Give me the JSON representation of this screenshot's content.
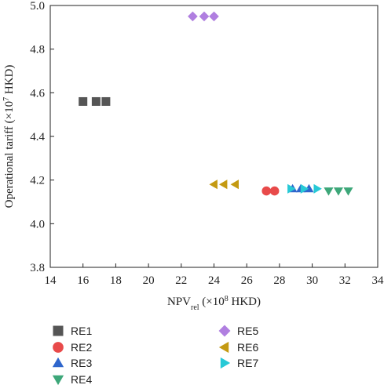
{
  "chart_data": {
    "type": "scatter",
    "xlabel": {
      "main": "NPV",
      "sub": "rel",
      "rest": " (×10",
      "sup": "8",
      "unit": " HKD)"
    },
    "ylabel": {
      "main": "Operational tariff (×10",
      "sup": "7",
      "unit": " HKD)"
    },
    "xlim": [
      14,
      34
    ],
    "ylim": [
      3.8,
      5.0
    ],
    "xticks": [
      14,
      16,
      18,
      20,
      22,
      24,
      26,
      28,
      30,
      32,
      34
    ],
    "yticks": [
      3.8,
      4.0,
      4.2,
      4.4,
      4.6,
      4.8,
      5.0
    ],
    "ytick_labels": [
      "3.8",
      "4.0",
      "4.2",
      "4.4",
      "4.6",
      "4.8",
      "5.0"
    ],
    "grid": false,
    "legend_position": "below-plot",
    "series": [
      {
        "name": "RE1",
        "marker": "square",
        "color": "#555555",
        "x": [
          16.0,
          16.8,
          17.4
        ],
        "y": [
          4.56,
          4.56,
          4.56
        ]
      },
      {
        "name": "RE2",
        "marker": "circle",
        "color": "#e84a4a",
        "x": [
          27.2,
          27.7
        ],
        "y": [
          4.15,
          4.15
        ]
      },
      {
        "name": "RE3",
        "marker": "triangle-up",
        "color": "#2f66cc",
        "x": [
          28.8,
          29.3,
          29.8
        ],
        "y": [
          4.16,
          4.16,
          4.16
        ]
      },
      {
        "name": "RE4",
        "marker": "triangle-down",
        "color": "#3da779",
        "x": [
          31.0,
          31.6,
          32.2
        ],
        "y": [
          4.15,
          4.15,
          4.15
        ]
      },
      {
        "name": "RE5",
        "marker": "diamond",
        "color": "#b07fe0",
        "x": [
          22.7,
          23.4,
          24.0
        ],
        "y": [
          4.95,
          4.95,
          4.95
        ]
      },
      {
        "name": "RE6",
        "marker": "triangle-left",
        "color": "#c49a12",
        "x": [
          24.0,
          24.6,
          25.3
        ],
        "y": [
          4.18,
          4.18,
          4.18
        ]
      },
      {
        "name": "RE7",
        "marker": "triangle-right",
        "color": "#27c9d6",
        "x": [
          28.7,
          29.5,
          30.3
        ],
        "y": [
          4.16,
          4.16,
          4.16
        ]
      }
    ]
  }
}
